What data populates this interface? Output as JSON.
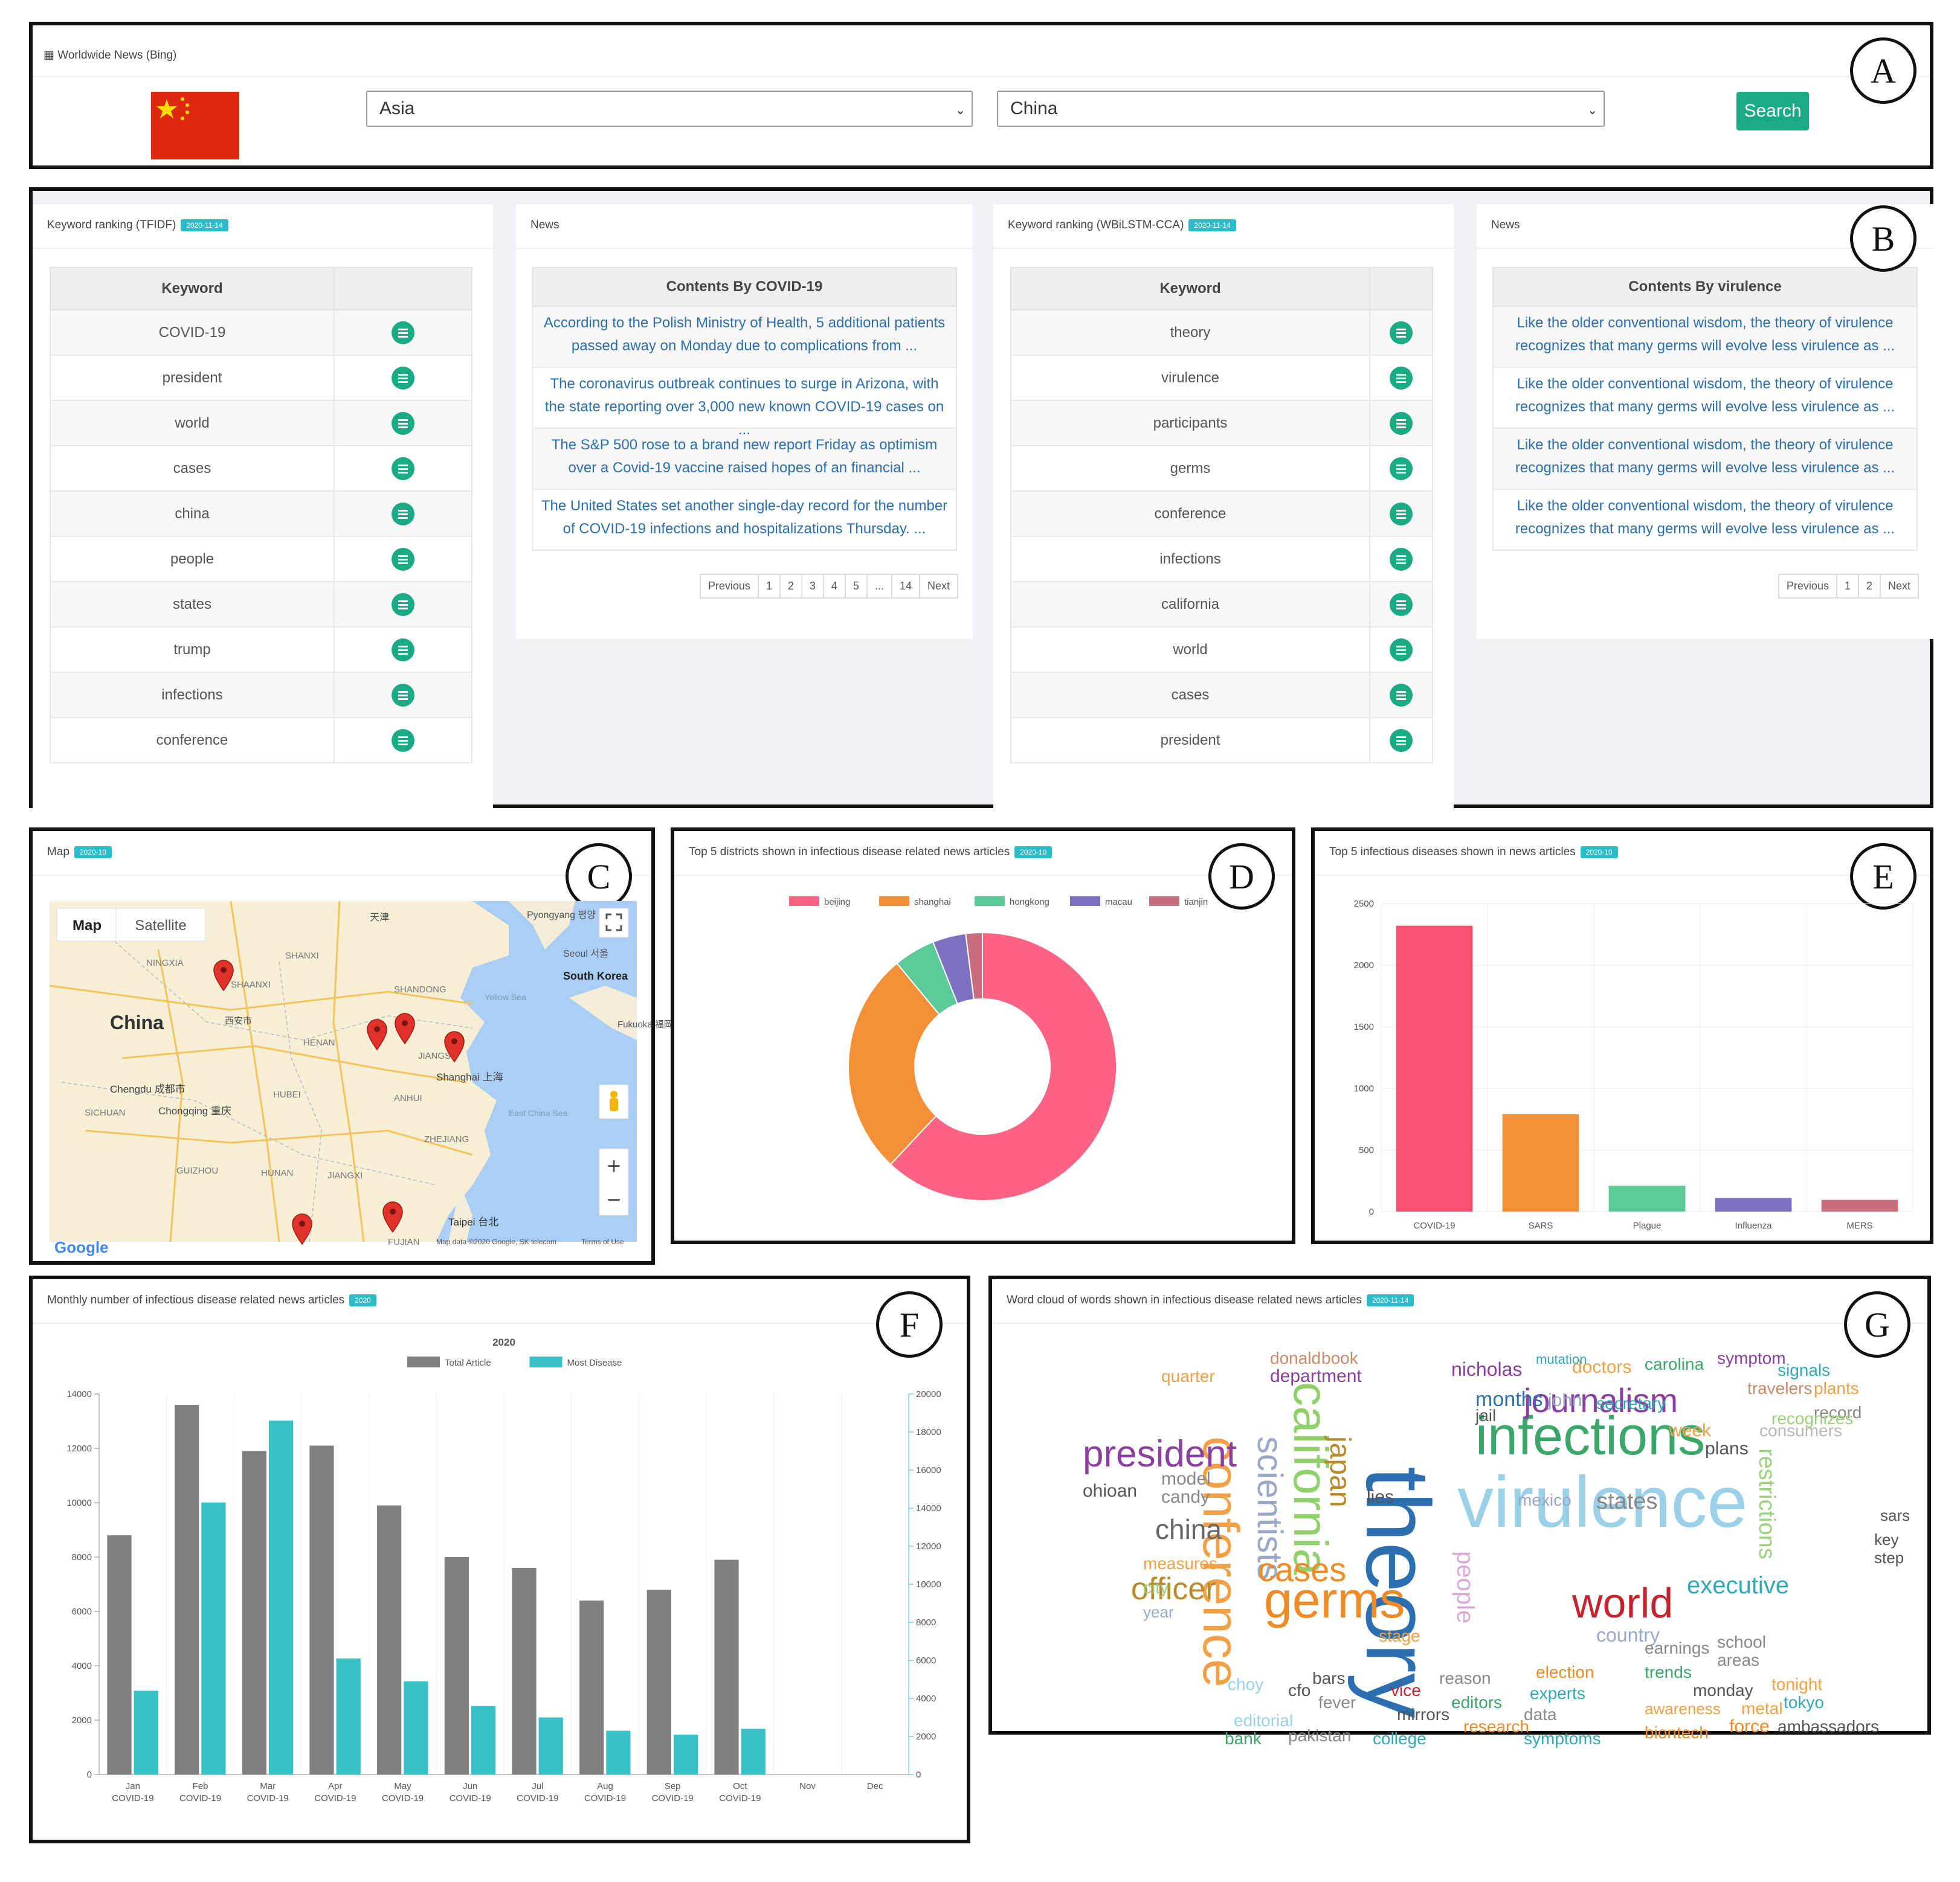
{
  "labels": {
    "a": "A",
    "b": "B",
    "c": "C",
    "d": "D",
    "e": "E",
    "f": "F",
    "g": "G"
  },
  "colors": {
    "accent_green": "#1aaa84",
    "badge": "#2bbbc9",
    "link": "#2c6fb0",
    "flag_red": "#de2910",
    "flag_yellow": "#ffde00"
  },
  "header": {
    "title": "Worldwide News (Bing)",
    "flag_icon": "china-flag-icon",
    "region": "Asia",
    "country": "China",
    "search_label": "Search"
  },
  "tfidf": {
    "title": "Keyword ranking (TFIDF)",
    "date": "2020-11-14",
    "col_keyword": "Keyword",
    "keywords": [
      "COVID-19",
      "president",
      "world",
      "cases",
      "china",
      "people",
      "states",
      "trump",
      "infections",
      "conference"
    ]
  },
  "news1": {
    "title": "News",
    "header": "Contents By COVID-19",
    "items": [
      [
        "According to the Polish Ministry of Health, 5 additional patients",
        "passed away on Monday due to complications from ..."
      ],
      [
        "The coronavirus outbreak continues to surge in Arizona, with",
        "the state reporting over 3,000 new known COVID-19 cases on ..."
      ],
      [
        "The S&P 500 rose to a brand new report Friday as optimism",
        "over a Covid-19 vaccine raised hopes of an financial ..."
      ],
      [
        "The United States set another single-day record for the number",
        "of COVID-19 infections and hospitalizations Thursday. ..."
      ]
    ],
    "pager": [
      "Previous",
      "1",
      "2",
      "3",
      "4",
      "5",
      "...",
      "14",
      "Next"
    ]
  },
  "wbilstm": {
    "title": "Keyword ranking (WBiLSTM-CCA)",
    "date": "2020-11-14",
    "col_keyword": "Keyword",
    "keywords": [
      "theory",
      "virulence",
      "participants",
      "germs",
      "conference",
      "infections",
      "california",
      "world",
      "cases",
      "president"
    ]
  },
  "news2": {
    "title": "News",
    "header": "Contents By virulence",
    "items": [
      [
        "Like the older conventional wisdom, the theory of virulence",
        "recognizes that many germs will evolve less virulence as ..."
      ],
      [
        "Like the older conventional wisdom, the theory of virulence",
        "recognizes that many germs will evolve less virulence as ..."
      ],
      [
        "Like the older conventional wisdom, the theory of virulence",
        "recognizes that many germs will evolve less virulence as ..."
      ],
      [
        "Like the older conventional wisdom, the theory of virulence",
        "recognizes that many germs will evolve less virulence as ..."
      ]
    ],
    "pager": [
      "Previous",
      "1",
      "2",
      "Next"
    ]
  },
  "map": {
    "title": "Map",
    "date": "2020-10",
    "tab_map": "Map",
    "tab_satellite": "Satellite",
    "place_labels": [
      "Pyongyang 평양",
      "天津",
      "Seoul 서울",
      "South Korea",
      "SHANXI",
      "NINGXIA",
      "SHANDONG",
      "China",
      "SHAANXI",
      "西安市",
      "Yellow Sea",
      "HENAN",
      "JIANGSU",
      "Fukuoka 福岡",
      "Chengdu 成都市",
      "HUBEI",
      "ANHUI",
      "Shanghai 上海",
      "SICHUAN",
      "Chongqing 重庆",
      "East China Sea",
      "ZHEJIANG",
      "GUIZHOU",
      "HUNAN",
      "JIANGXI",
      "FUJIAN",
      "Taipei 台北",
      "Google",
      "Map data ©2020 Google, SK telecom",
      "Terms of Use"
    ],
    "zoom_in": "+",
    "zoom_out": "−"
  },
  "donut": {
    "title": "Top 5 districts shown in infectious disease related news articles",
    "date": "2020-10"
  },
  "bars": {
    "title": "Top 5 infectious diseases shown in news articles",
    "date": "2020-10"
  },
  "monthly": {
    "title": "Monthly number of infectious disease related news articles",
    "date": "2020"
  },
  "wordcloud": {
    "title": "Word cloud of words shown in infectious disease related news articles",
    "date": "2020-11-14"
  },
  "chart_data": [
    {
      "type": "pie",
      "title": "",
      "categories": [
        "beijing",
        "shanghai",
        "hongkong",
        "macau",
        "tianjin"
      ],
      "values": [
        62,
        27,
        5,
        4,
        2
      ],
      "colors": [
        "#ff6384",
        "#f58f37",
        "#5cc998",
        "#7e6fc1",
        "#c96c7f"
      ],
      "legend": "top"
    },
    {
      "type": "bar",
      "categories": [
        "COVID-19",
        "SARS",
        "Plague",
        "Influenza",
        "MERS"
      ],
      "values": [
        2320,
        790,
        210,
        110,
        95
      ],
      "colors": [
        "#f6516f",
        "#f58f37",
        "#5cc998",
        "#7e6fc1",
        "#c96c7f"
      ],
      "ylim": [
        0,
        2500
      ],
      "yticks": [
        0,
        500,
        1000,
        1500,
        2000,
        2500
      ]
    },
    {
      "type": "bar",
      "title": "2020",
      "categories": [
        "Jan",
        "Feb",
        "Mar",
        "Apr",
        "May",
        "Jun",
        "Jul",
        "Aug",
        "Sep",
        "Oct",
        "Nov",
        "Dec"
      ],
      "sublabels": [
        "COVID-19",
        "COVID-19",
        "COVID-19",
        "COVID-19",
        "COVID-19",
        "COVID-19",
        "COVID-19",
        "COVID-19",
        "COVID-19",
        "COVID-19",
        "",
        ""
      ],
      "series": [
        {
          "name": "Total Article",
          "axis": "left",
          "color": "#7f7f7f",
          "values": [
            8800,
            13600,
            11900,
            12100,
            9900,
            8000,
            7600,
            6400,
            6800,
            7900,
            null,
            null
          ]
        },
        {
          "name": "Most Disease",
          "axis": "right",
          "color": "#39c0c6",
          "values": [
            4400,
            14300,
            18600,
            6100,
            4900,
            3600,
            3000,
            2300,
            2100,
            2400,
            null,
            null
          ]
        }
      ],
      "ylim_left": [
        0,
        14000
      ],
      "yticks_left": [
        0,
        2000,
        4000,
        6000,
        8000,
        10000,
        12000,
        14000
      ],
      "ylim_right": [
        0,
        20000
      ],
      "yticks_right": [
        0,
        2000,
        4000,
        6000,
        8000,
        10000,
        12000,
        14000,
        16000,
        18000,
        20000
      ]
    }
  ]
}
